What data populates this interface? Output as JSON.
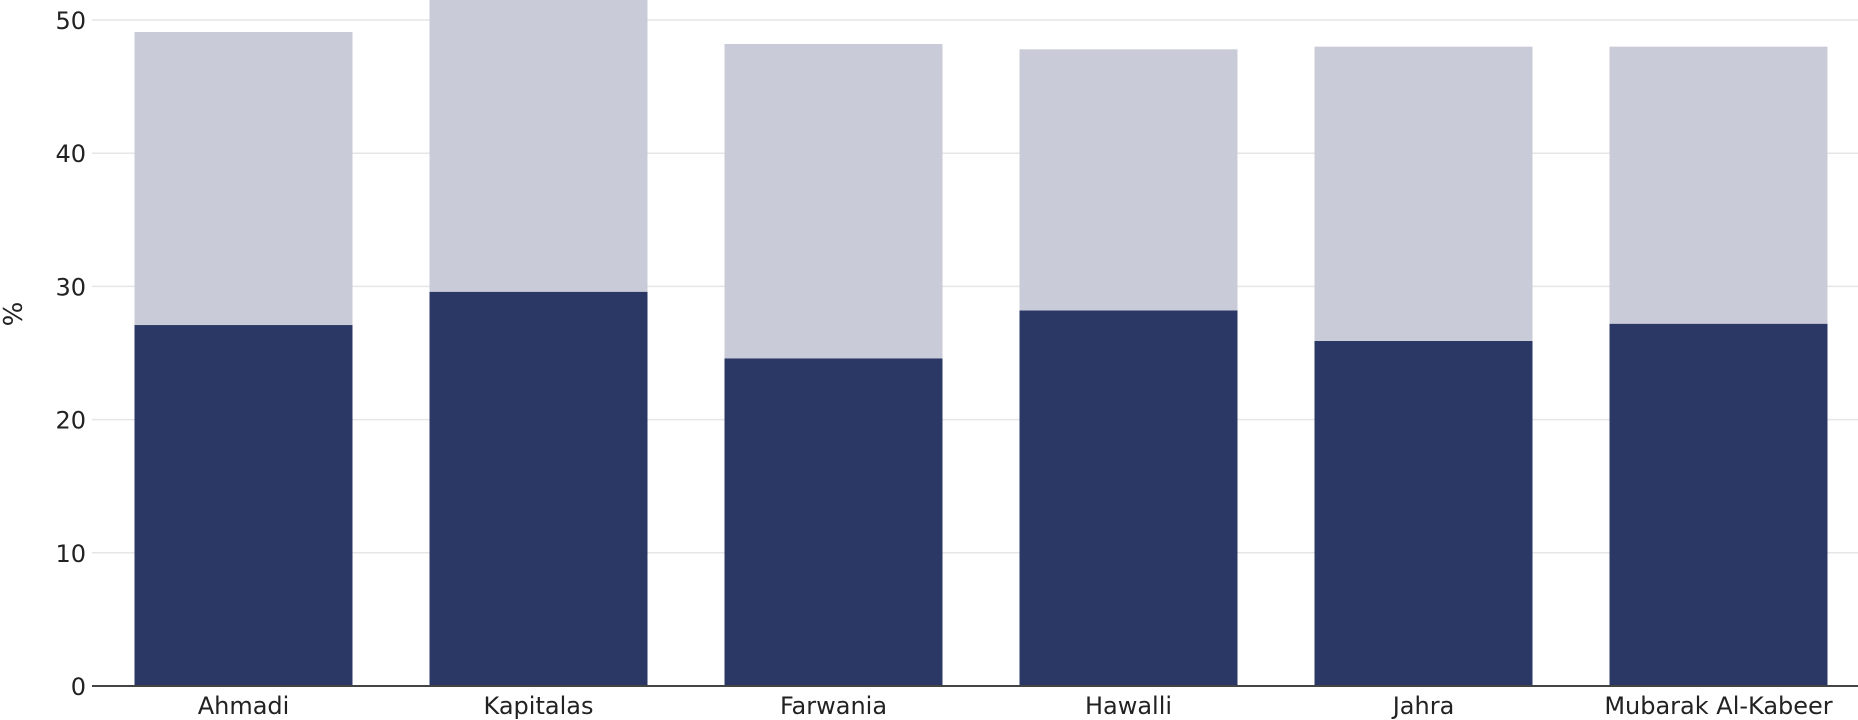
{
  "chart_data": {
    "type": "bar",
    "stacked": true,
    "categories": [
      "Ahmadi",
      "Kapitalas",
      "Farwania",
      "Hawalli",
      "Jahra",
      "Mubarak Al-Kabeer"
    ],
    "series": [
      {
        "color": "#2b3764",
        "values": [
          27.1,
          29.6,
          24.6,
          28.2,
          25.9,
          27.2
        ]
      },
      {
        "color": "#c9ccd8",
        "values": [
          22.0,
          22.5,
          23.6,
          19.6,
          22.1,
          20.8
        ]
      }
    ],
    "ylabel": "%",
    "ylim": [
      0,
      50
    ],
    "yticks": [
      0,
      10,
      20,
      30,
      40,
      50
    ],
    "grid": true
  }
}
